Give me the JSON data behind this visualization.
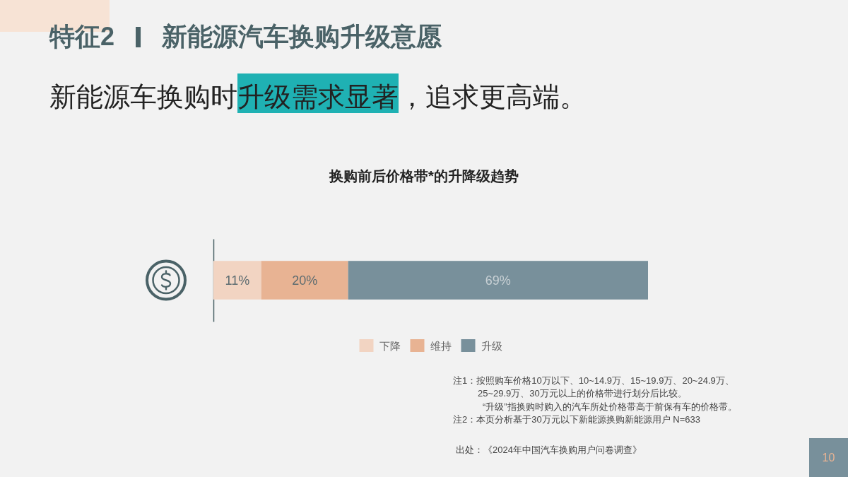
{
  "chart_data": {
    "type": "bar",
    "title": "换购前后价格带*的升降级趋势",
    "orientation": "horizontal",
    "stacked": true,
    "categories": [
      null
    ],
    "xlim": [
      0,
      100
    ],
    "series": [
      {
        "name": "下降",
        "color": "#f2d4c2",
        "values": [
          11
        ],
        "value_labels": [
          "11%"
        ]
      },
      {
        "name": "维持",
        "color": "#e8b393",
        "values": [
          20
        ],
        "value_labels": [
          "20%"
        ]
      },
      {
        "name": "升级",
        "color": "#78909b",
        "values": [
          69
        ],
        "value_labels": [
          "69%"
        ]
      }
    ],
    "legend": "bottom",
    "annotations": [
      "特征2",
      "新能源汽车换购升级意愿",
      "新能源车换购时",
      "升级需求显著",
      "，追求更高端。",
      "注1：按照购车价格10万以下、10~14.9万、15~19.9万、20~24.9万、",
      "25~29.9万、30万元以上的价格带进行划分后比较。",
      "“升级”指换购时购入的汽车所处价格带高于前保有车的价格带。",
      "注2：本页分析基于30万元以下新能源换购新能源用户 N=633",
      "出处：《2024年中国汽车换购用户问卷调查》",
      "10"
    ]
  }
}
